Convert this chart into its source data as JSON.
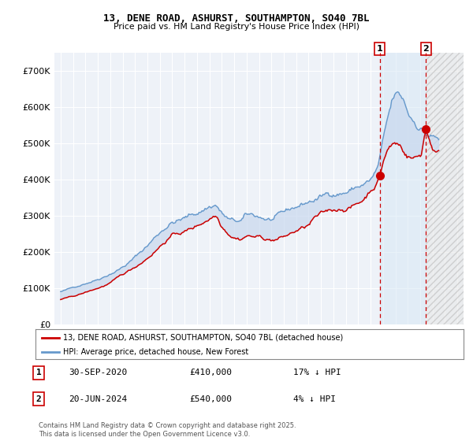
{
  "title": "13, DENE ROAD, ASHURST, SOUTHAMPTON, SO40 7BL",
  "subtitle": "Price paid vs. HM Land Registry's House Price Index (HPI)",
  "legend_label_red": "13, DENE ROAD, ASHURST, SOUTHAMPTON, SO40 7BL (detached house)",
  "legend_label_blue": "HPI: Average price, detached house, New Forest",
  "annotation1_date": "30-SEP-2020",
  "annotation1_price": "£410,000",
  "annotation1_hpi": "17% ↓ HPI",
  "annotation1_year": 2020.75,
  "annotation1_value": 410000,
  "annotation2_date": "20-JUN-2024",
  "annotation2_price": "£540,000",
  "annotation2_hpi": "4% ↓ HPI",
  "annotation2_year": 2024.46,
  "annotation2_value": 540000,
  "footer": "Contains HM Land Registry data © Crown copyright and database right 2025.\nThis data is licensed under the Open Government Licence v3.0.",
  "background_color": "#ffffff",
  "plot_bg_color": "#eef2f8",
  "red_color": "#cc0000",
  "blue_color": "#6699cc",
  "blue_fill_color": "#c8d8ee",
  "hatch_region_color": "#d8d8d8",
  "ylim": [
    0,
    750000
  ],
  "yticks": [
    0,
    100000,
    200000,
    300000,
    400000,
    500000,
    600000,
    700000
  ],
  "xlim_start": 1994.5,
  "xlim_end": 2027.5
}
